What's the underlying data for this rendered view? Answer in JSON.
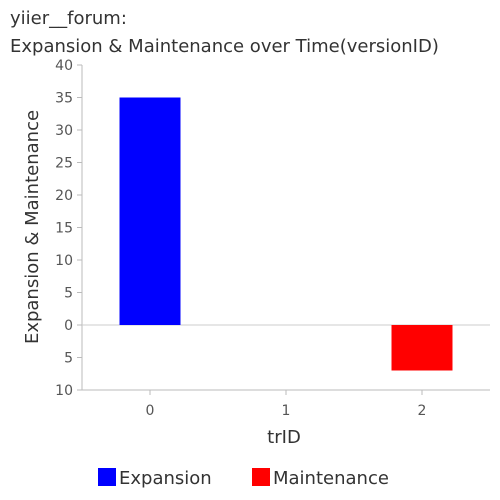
{
  "chart_data": {
    "type": "bar",
    "title_lines": [
      "yiier__forum:",
      "Expansion & Maintenance over Time(versionID)"
    ],
    "xlabel": "trID",
    "ylabel": "Expansion & Maintenance",
    "categories": [
      "0",
      "1",
      "2"
    ],
    "y_ticks": [
      {
        "value": 40,
        "label": "40"
      },
      {
        "value": 35,
        "label": "35"
      },
      {
        "value": 30,
        "label": "30"
      },
      {
        "value": 25,
        "label": "25"
      },
      {
        "value": 20,
        "label": "20"
      },
      {
        "value": 15,
        "label": "15"
      },
      {
        "value": 10,
        "label": "10"
      },
      {
        "value": 5,
        "label": "5"
      },
      {
        "value": 0,
        "label": "0"
      },
      {
        "value": -5,
        "label": "5"
      },
      {
        "value": -10,
        "label": "10"
      }
    ],
    "ylim": [
      -10,
      40
    ],
    "grid": false,
    "legend_position": "bottom",
    "series": [
      {
        "name": "Expansion",
        "color": "#0000ff",
        "values": [
          35,
          0,
          0
        ]
      },
      {
        "name": "Maintenance",
        "color": "#ff0000",
        "values": [
          0,
          0,
          -7
        ]
      }
    ]
  }
}
